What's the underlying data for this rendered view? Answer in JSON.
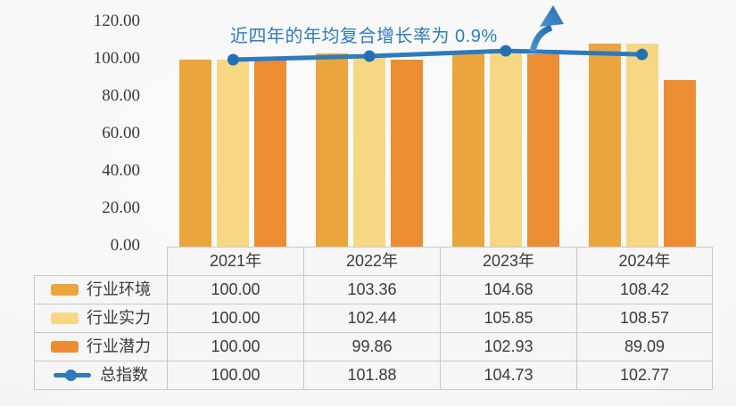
{
  "chart_data": {
    "type": "bar+line",
    "categories": [
      "2021年",
      "2022年",
      "2023年",
      "2024年"
    ],
    "series": [
      {
        "name": "行业环境",
        "id": "industry-environment",
        "type": "bar",
        "color": "#EAA63C",
        "values": [
          100.0,
          103.36,
          104.68,
          108.42
        ]
      },
      {
        "name": "行业实力",
        "id": "industry-strength",
        "type": "bar",
        "color": "#F7D784",
        "values": [
          100.0,
          102.44,
          105.85,
          108.57
        ]
      },
      {
        "name": "行业潜力",
        "id": "industry-potential",
        "type": "bar",
        "color": "#EC8D33",
        "values": [
          100.0,
          99.86,
          102.93,
          89.09
        ]
      },
      {
        "name": "总指数",
        "id": "total-index",
        "type": "line",
        "color": "#2E7ABD",
        "marker_color": "#2470B3",
        "values": [
          100.0,
          101.88,
          104.73,
          102.77
        ]
      }
    ],
    "ylim": [
      0,
      120
    ],
    "ytick_step": 20,
    "yticks": [
      "120.00",
      "100.00",
      "80.00",
      "60.00",
      "40.00",
      "20.00",
      "0.00"
    ],
    "grid": false,
    "legend_position": "table-left-column",
    "annotation": {
      "text": "近四年的年均复合增长率为 0.9%",
      "color": "#2E7CC0",
      "icon": "curved-up-arrow"
    }
  },
  "table": {
    "column_headers": [
      "2021年",
      "2022年",
      "2023年",
      "2024年"
    ],
    "rows": [
      {
        "label": "行业环境",
        "id": "industry-environment",
        "swatch": "bar-swatch",
        "color": "#EAA63C",
        "values": [
          "100.00",
          "103.36",
          "104.68",
          "108.42"
        ]
      },
      {
        "label": "行业实力",
        "id": "industry-strength",
        "swatch": "bar-swatch",
        "color": "#F7D784",
        "values": [
          "100.00",
          "102.44",
          "105.85",
          "108.57"
        ]
      },
      {
        "label": "行业潜力",
        "id": "industry-potential",
        "swatch": "bar-swatch",
        "color": "#EC8D33",
        "values": [
          "100.00",
          "99.86",
          "102.93",
          "89.09"
        ]
      },
      {
        "label": "总指数",
        "id": "total-index",
        "swatch": "line-swatch",
        "color": "#2E7ABD",
        "values": [
          "100.00",
          "101.88",
          "104.73",
          "102.77"
        ]
      }
    ]
  },
  "colors": {
    "background_light": "#FBFBFB",
    "background_dark": "#EAEAEA",
    "table_border": "#C8C8C8",
    "cell_background": "#F6F6F6",
    "text": "#3B3B3B",
    "axis_text": "#3A3A3A",
    "arrow_gradient_start": "#4E93CF",
    "arrow_gradient_end": "#1F6CB4"
  }
}
